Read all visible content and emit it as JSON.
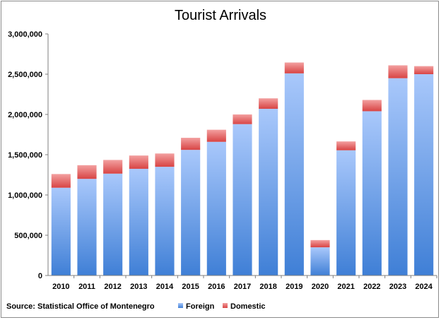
{
  "chart_data": {
    "type": "bar",
    "stacked": true,
    "title": "Tourist Arrivals",
    "source": "Source: Statistical Office of Montenegro",
    "categories": [
      "2010",
      "2011",
      "2012",
      "2013",
      "2014",
      "2015",
      "2016",
      "2017",
      "2018",
      "2019",
      "2020",
      "2021",
      "2022",
      "2023",
      "2024"
    ],
    "series": [
      {
        "name": "Foreign",
        "color": "#5b8fe0",
        "values": [
          1090000,
          1200000,
          1265000,
          1325000,
          1350000,
          1560000,
          1660000,
          1880000,
          2070000,
          2510000,
          350000,
          1555000,
          2040000,
          2450000,
          2500000
        ]
      },
      {
        "name": "Domestic",
        "color": "#e05a5a",
        "values": [
          170000,
          170000,
          170000,
          165000,
          165000,
          150000,
          150000,
          120000,
          130000,
          135000,
          90000,
          110000,
          140000,
          160000,
          100000
        ]
      }
    ],
    "ylim": [
      0,
      3000000
    ],
    "yticks": [
      0,
      500000,
      1000000,
      1500000,
      2000000,
      2500000,
      3000000
    ],
    "ytick_labels": [
      "0",
      "500,000",
      "1,000,000",
      "1,500,000",
      "2,000,000",
      "2,500,000",
      "3,000,000"
    ],
    "grid": false,
    "legend_position": "bottom"
  }
}
